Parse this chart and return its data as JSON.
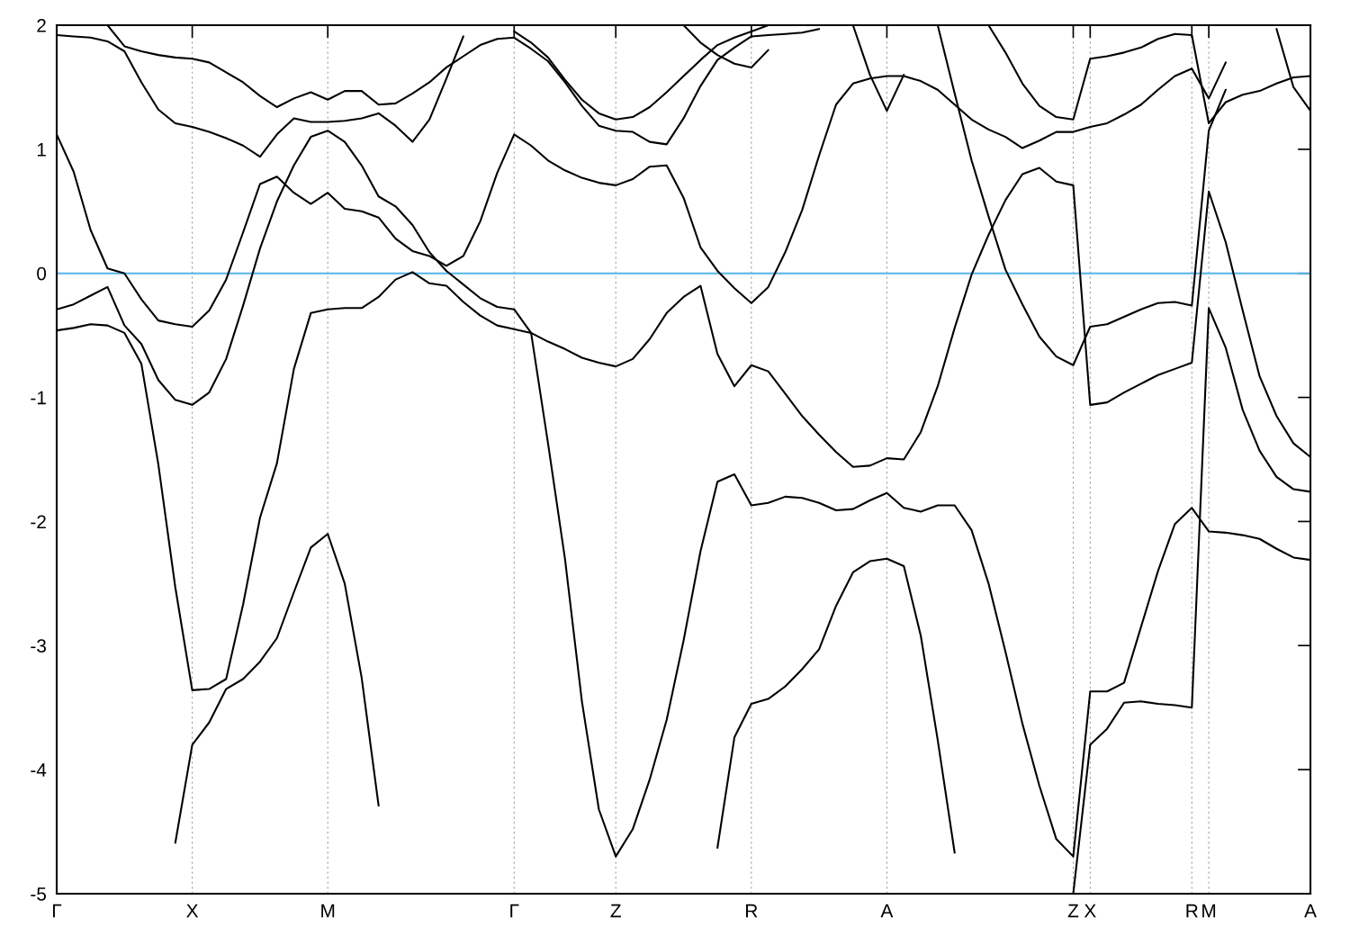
{
  "chart_data": {
    "type": "line",
    "categories": [
      "Γ",
      null,
      null,
      null,
      null,
      null,
      null,
      null,
      "X",
      null,
      null,
      null,
      null,
      null,
      null,
      null,
      "M",
      null,
      null,
      null,
      null,
      null,
      null,
      null,
      null,
      null,
      null,
      "Γ",
      null,
      null,
      null,
      null,
      null,
      "Z",
      null,
      null,
      null,
      null,
      null,
      null,
      null,
      "R",
      null,
      null,
      null,
      null,
      null,
      null,
      null,
      "A",
      null,
      null,
      null,
      null,
      null,
      null,
      null,
      null,
      null,
      null,
      "Z",
      "X",
      null,
      null,
      null,
      null,
      null,
      "R",
      "M",
      null,
      null,
      null,
      null,
      null,
      "A"
    ],
    "ylim": [
      -5,
      2
    ],
    "yticks": [
      -5,
      -4,
      -3,
      -2,
      -1,
      0,
      1,
      2
    ],
    "grid": "x",
    "ref_lines": [
      {
        "axis": "y",
        "value": 0,
        "color": "#56b4e9"
      }
    ],
    "series": [
      {
        "color": "#000000",
        "values": [
          1.92,
          1.91,
          1.9,
          1.87,
          1.79,
          1.54,
          1.32,
          1.21,
          1.18,
          1.14,
          1.09,
          1.03,
          0.94,
          1.12,
          1.25,
          1.22,
          1.22,
          1.23,
          1.25,
          1.29,
          1.19,
          1.06,
          1.24,
          1.57,
          1.91,
          null,
          null,
          null,
          null,
          null,
          null,
          null,
          null,
          null,
          null,
          null,
          null,
          null,
          null,
          null,
          null,
          null,
          null,
          null,
          null,
          null,
          null,
          null,
          null,
          null,
          null,
          null,
          null,
          null,
          null,
          null,
          null,
          null,
          null,
          null,
          null,
          null,
          null,
          null,
          null,
          null,
          null,
          null,
          null,
          null,
          null,
          null,
          null,
          null,
          null
        ]
      },
      {
        "color": "#000000",
        "values": [
          null,
          null,
          null,
          2.0,
          1.83,
          1.79,
          1.76,
          1.74,
          1.73,
          1.7,
          1.62,
          1.54,
          1.43,
          1.34,
          1.41,
          1.46,
          1.4,
          1.47,
          1.47,
          1.36,
          1.37,
          1.45,
          1.54,
          1.66,
          1.75,
          1.84,
          1.89,
          1.9,
          1.81,
          1.71,
          1.54,
          1.35,
          1.19,
          1.15,
          1.14,
          1.06,
          1.04,
          1.25,
          1.51,
          1.72,
          1.82,
          1.91,
          1.92,
          1.93,
          1.94,
          1.97,
          null,
          null,
          null,
          null,
          null,
          null,
          null,
          null,
          null,
          null,
          null,
          null,
          null,
          null,
          null,
          null,
          null,
          null,
          null,
          null,
          null,
          null,
          null,
          null,
          null,
          null,
          null,
          null,
          null
        ]
      },
      {
        "color": "#000000",
        "values": [
          null,
          null,
          null,
          null,
          null,
          null,
          null,
          null,
          null,
          null,
          null,
          null,
          null,
          null,
          null,
          null,
          null,
          null,
          null,
          null,
          null,
          null,
          null,
          null,
          null,
          null,
          null,
          1.95,
          1.86,
          1.74,
          1.56,
          1.4,
          1.29,
          1.24,
          1.26,
          1.34,
          1.46,
          1.59,
          1.72,
          1.84,
          1.9,
          1.95,
          2.0,
          null,
          null,
          null,
          null,
          null,
          null,
          null,
          null,
          null,
          null,
          null,
          null,
          null,
          null,
          null,
          null,
          null,
          null,
          null,
          null,
          null,
          null,
          null,
          null,
          null,
          null,
          null,
          null,
          null,
          null,
          null,
          null
        ]
      },
      {
        "color": "#000000",
        "values": [
          null,
          null,
          null,
          null,
          null,
          null,
          null,
          null,
          null,
          null,
          null,
          null,
          null,
          null,
          null,
          null,
          null,
          null,
          null,
          null,
          null,
          null,
          null,
          null,
          null,
          null,
          null,
          null,
          null,
          null,
          null,
          null,
          null,
          null,
          null,
          null,
          null,
          2.0,
          1.86,
          1.76,
          1.69,
          1.66,
          1.8,
          null,
          null,
          null,
          null,
          null,
          null,
          null,
          null,
          null,
          null,
          null,
          null,
          null,
          null,
          null,
          null,
          null,
          null,
          null,
          null,
          null,
          null,
          null,
          null,
          null,
          null,
          null,
          null,
          null,
          null,
          null,
          null
        ]
      },
      {
        "color": "#000000",
        "values": [
          1.12,
          0.82,
          0.35,
          0.04,
          0.0,
          -0.21,
          -0.38,
          -0.41,
          -0.43,
          -0.3,
          -0.05,
          0.33,
          0.72,
          0.78,
          0.65,
          0.56,
          0.65,
          0.52,
          0.5,
          0.45,
          0.28,
          0.18,
          0.14,
          0.06,
          0.14,
          0.42,
          0.81,
          1.12,
          1.03,
          0.91,
          0.83,
          0.77,
          0.73,
          0.71,
          0.76,
          0.86,
          0.87,
          0.61,
          0.21,
          0.02,
          -0.12,
          -0.24,
          -0.11,
          0.17,
          0.51,
          0.95,
          1.36,
          1.53,
          1.57,
          1.59,
          1.59,
          1.55,
          1.48,
          1.36,
          1.24,
          1.16,
          1.1,
          1.01,
          1.07,
          1.14,
          1.14,
          1.18,
          1.21,
          1.28,
          1.36,
          1.48,
          1.59,
          1.65,
          1.41,
          1.7,
          null,
          null,
          null,
          null,
          null
        ]
      },
      {
        "color": "#000000",
        "values": [
          null,
          null,
          null,
          null,
          null,
          null,
          null,
          null,
          null,
          null,
          null,
          null,
          null,
          null,
          null,
          null,
          null,
          null,
          null,
          null,
          null,
          null,
          null,
          null,
          null,
          null,
          null,
          null,
          null,
          null,
          null,
          null,
          null,
          null,
          null,
          null,
          null,
          null,
          null,
          null,
          null,
          null,
          null,
          null,
          null,
          null,
          null,
          null,
          null,
          null,
          null,
          null,
          null,
          null,
          null,
          2.0,
          1.78,
          1.53,
          1.35,
          1.26,
          1.24,
          1.73,
          1.75,
          1.78,
          1.82,
          1.89,
          1.93,
          1.92,
          1.21,
          1.38,
          1.44,
          1.47,
          1.53,
          1.58,
          1.59
        ]
      },
      {
        "color": "#000000",
        "values": [
          null,
          null,
          null,
          null,
          null,
          null,
          null,
          null,
          null,
          null,
          null,
          null,
          null,
          null,
          null,
          null,
          null,
          null,
          null,
          null,
          null,
          null,
          null,
          null,
          null,
          null,
          null,
          null,
          null,
          null,
          null,
          null,
          null,
          null,
          null,
          null,
          null,
          null,
          null,
          null,
          null,
          null,
          null,
          null,
          null,
          null,
          null,
          null,
          null,
          null,
          null,
          null,
          2.0,
          1.45,
          0.91,
          0.46,
          0.03,
          -0.25,
          -0.51,
          -0.67,
          -0.74,
          -0.43,
          -0.41,
          -0.35,
          -0.29,
          -0.24,
          -0.23,
          -0.26,
          1.15,
          1.48,
          null,
          null,
          null,
          null,
          null
        ]
      },
      {
        "color": "#000000",
        "values": [
          -0.46,
          -0.44,
          -0.41,
          -0.42,
          -0.48,
          -0.73,
          -1.54,
          -2.53,
          -3.36,
          -3.35,
          -3.27,
          -2.67,
          -1.97,
          -1.53,
          -0.77,
          -0.32,
          -0.29,
          -0.28,
          -0.28,
          -0.19,
          -0.05,
          0.01,
          -0.08,
          -0.1,
          -0.23,
          -0.34,
          -0.42,
          -0.45,
          -0.48,
          -0.55,
          -0.61,
          -0.68,
          -0.72,
          -0.75,
          -0.69,
          -0.53,
          -0.32,
          -0.19,
          -0.1,
          -0.65,
          -0.91,
          -0.74,
          -0.79,
          -0.97,
          -1.15,
          -1.3,
          -1.44,
          -1.56,
          -1.55,
          -1.49,
          -1.5,
          -1.28,
          -0.91,
          -0.44,
          -0.01,
          0.31,
          0.59,
          0.8,
          0.85,
          0.74,
          0.71,
          -1.06,
          -1.04,
          -0.96,
          -0.89,
          -0.82,
          -0.77,
          -0.72,
          0.66,
          0.25,
          -0.3,
          -0.83,
          -1.15,
          -1.37,
          -1.48
        ]
      },
      {
        "color": "#000000",
        "values": [
          -0.29,
          -0.25,
          -0.18,
          -0.11,
          -0.42,
          -0.57,
          -0.86,
          -1.02,
          -1.06,
          -0.96,
          -0.69,
          -0.26,
          0.2,
          0.58,
          0.87,
          1.1,
          1.15,
          1.06,
          0.87,
          0.62,
          0.54,
          0.39,
          0.17,
          0.02,
          -0.09,
          -0.2,
          -0.27,
          -0.29,
          -0.48,
          -1.37,
          -2.3,
          -3.45,
          -4.32,
          -4.7,
          -4.48,
          -4.08,
          -3.6,
          -2.96,
          -2.24,
          -1.68,
          -1.62,
          -1.87,
          -1.85,
          -1.8,
          -1.81,
          -1.85,
          -1.91,
          -1.9,
          -1.83,
          -1.77,
          -1.89,
          -1.92,
          -1.87,
          -1.87,
          -2.07,
          -2.5,
          -3.05,
          -3.63,
          -4.13,
          -4.56,
          -4.7,
          -3.37,
          -3.37,
          -3.3,
          -2.85,
          -2.4,
          -2.02,
          -1.89,
          -2.08,
          -2.09,
          -2.11,
          -2.14,
          -2.22,
          -2.29,
          -2.31
        ]
      },
      {
        "color": "#000000",
        "values": [
          null,
          null,
          null,
          null,
          null,
          null,
          null,
          null,
          null,
          null,
          null,
          null,
          null,
          null,
          null,
          null,
          null,
          null,
          null,
          null,
          null,
          null,
          null,
          null,
          null,
          null,
          null,
          null,
          null,
          null,
          null,
          null,
          null,
          null,
          null,
          null,
          null,
          null,
          null,
          null,
          null,
          null,
          null,
          null,
          null,
          null,
          null,
          null,
          null,
          null,
          null,
          null,
          null,
          null,
          null,
          null,
          null,
          null,
          null,
          null,
          -5.0,
          -3.8,
          -3.67,
          -3.46,
          -3.45,
          -3.47,
          -3.48,
          -3.5,
          -0.28,
          -0.6,
          -1.1,
          -1.43,
          -1.64,
          -1.74,
          -1.76
        ]
      },
      {
        "color": "#000000",
        "values": [
          null,
          null,
          null,
          null,
          null,
          null,
          null,
          -4.59,
          -3.8,
          -3.62,
          -3.35,
          -3.27,
          -3.13,
          -2.94,
          -2.57,
          -2.21,
          -2.1,
          -2.5,
          -3.26,
          -4.29,
          null,
          null,
          null,
          null,
          null,
          null,
          null,
          null,
          null,
          null,
          null,
          null,
          null,
          null,
          null,
          null,
          null,
          null,
          null,
          null,
          null,
          null,
          null,
          null,
          null,
          null,
          null,
          null,
          null,
          null,
          null,
          null,
          null,
          null,
          null,
          null,
          null,
          null,
          null,
          null,
          null,
          null,
          null,
          null,
          null,
          null,
          null,
          null,
          null,
          null,
          null,
          null,
          null,
          null,
          null
        ]
      },
      {
        "color": "#000000",
        "values": [
          null,
          null,
          null,
          null,
          null,
          null,
          null,
          null,
          null,
          null,
          null,
          null,
          null,
          null,
          null,
          null,
          null,
          null,
          null,
          null,
          null,
          null,
          null,
          null,
          null,
          null,
          null,
          null,
          null,
          null,
          null,
          null,
          null,
          null,
          null,
          null,
          null,
          null,
          null,
          -4.63,
          -3.74,
          -3.47,
          -3.43,
          -3.33,
          -3.19,
          -3.03,
          -2.68,
          -2.41,
          -2.32,
          -2.3,
          -2.36,
          -2.92,
          -3.76,
          -4.67,
          null,
          null,
          null,
          null,
          null,
          null,
          null,
          null,
          null,
          null,
          null,
          null,
          null,
          null,
          null,
          null,
          null,
          null,
          null,
          null,
          null
        ]
      },
      {
        "color": "#000000",
        "values": [
          null,
          null,
          null,
          null,
          null,
          null,
          null,
          null,
          null,
          null,
          null,
          null,
          null,
          null,
          null,
          null,
          null,
          null,
          null,
          null,
          null,
          null,
          null,
          null,
          null,
          null,
          null,
          null,
          null,
          null,
          null,
          null,
          null,
          null,
          null,
          null,
          null,
          null,
          null,
          null,
          null,
          null,
          null,
          null,
          null,
          null,
          null,
          2.0,
          1.6,
          1.31,
          1.6,
          null,
          null,
          null,
          null,
          null,
          null,
          null,
          null,
          null,
          null,
          null,
          null,
          null,
          null,
          null,
          null,
          null,
          null,
          null,
          null,
          null,
          null,
          null,
          null
        ]
      },
      {
        "color": "#000000",
        "values": [
          null,
          null,
          null,
          null,
          null,
          null,
          null,
          null,
          null,
          null,
          null,
          null,
          null,
          null,
          null,
          null,
          null,
          null,
          null,
          null,
          null,
          null,
          null,
          null,
          null,
          null,
          null,
          null,
          null,
          null,
          null,
          null,
          null,
          null,
          null,
          null,
          null,
          null,
          null,
          null,
          null,
          null,
          null,
          null,
          null,
          null,
          null,
          null,
          null,
          null,
          null,
          null,
          null,
          null,
          null,
          null,
          null,
          null,
          null,
          null,
          null,
          null,
          null,
          null,
          null,
          null,
          null,
          null,
          null,
          null,
          null,
          null,
          1.97,
          1.5,
          1.31
        ]
      }
    ]
  }
}
